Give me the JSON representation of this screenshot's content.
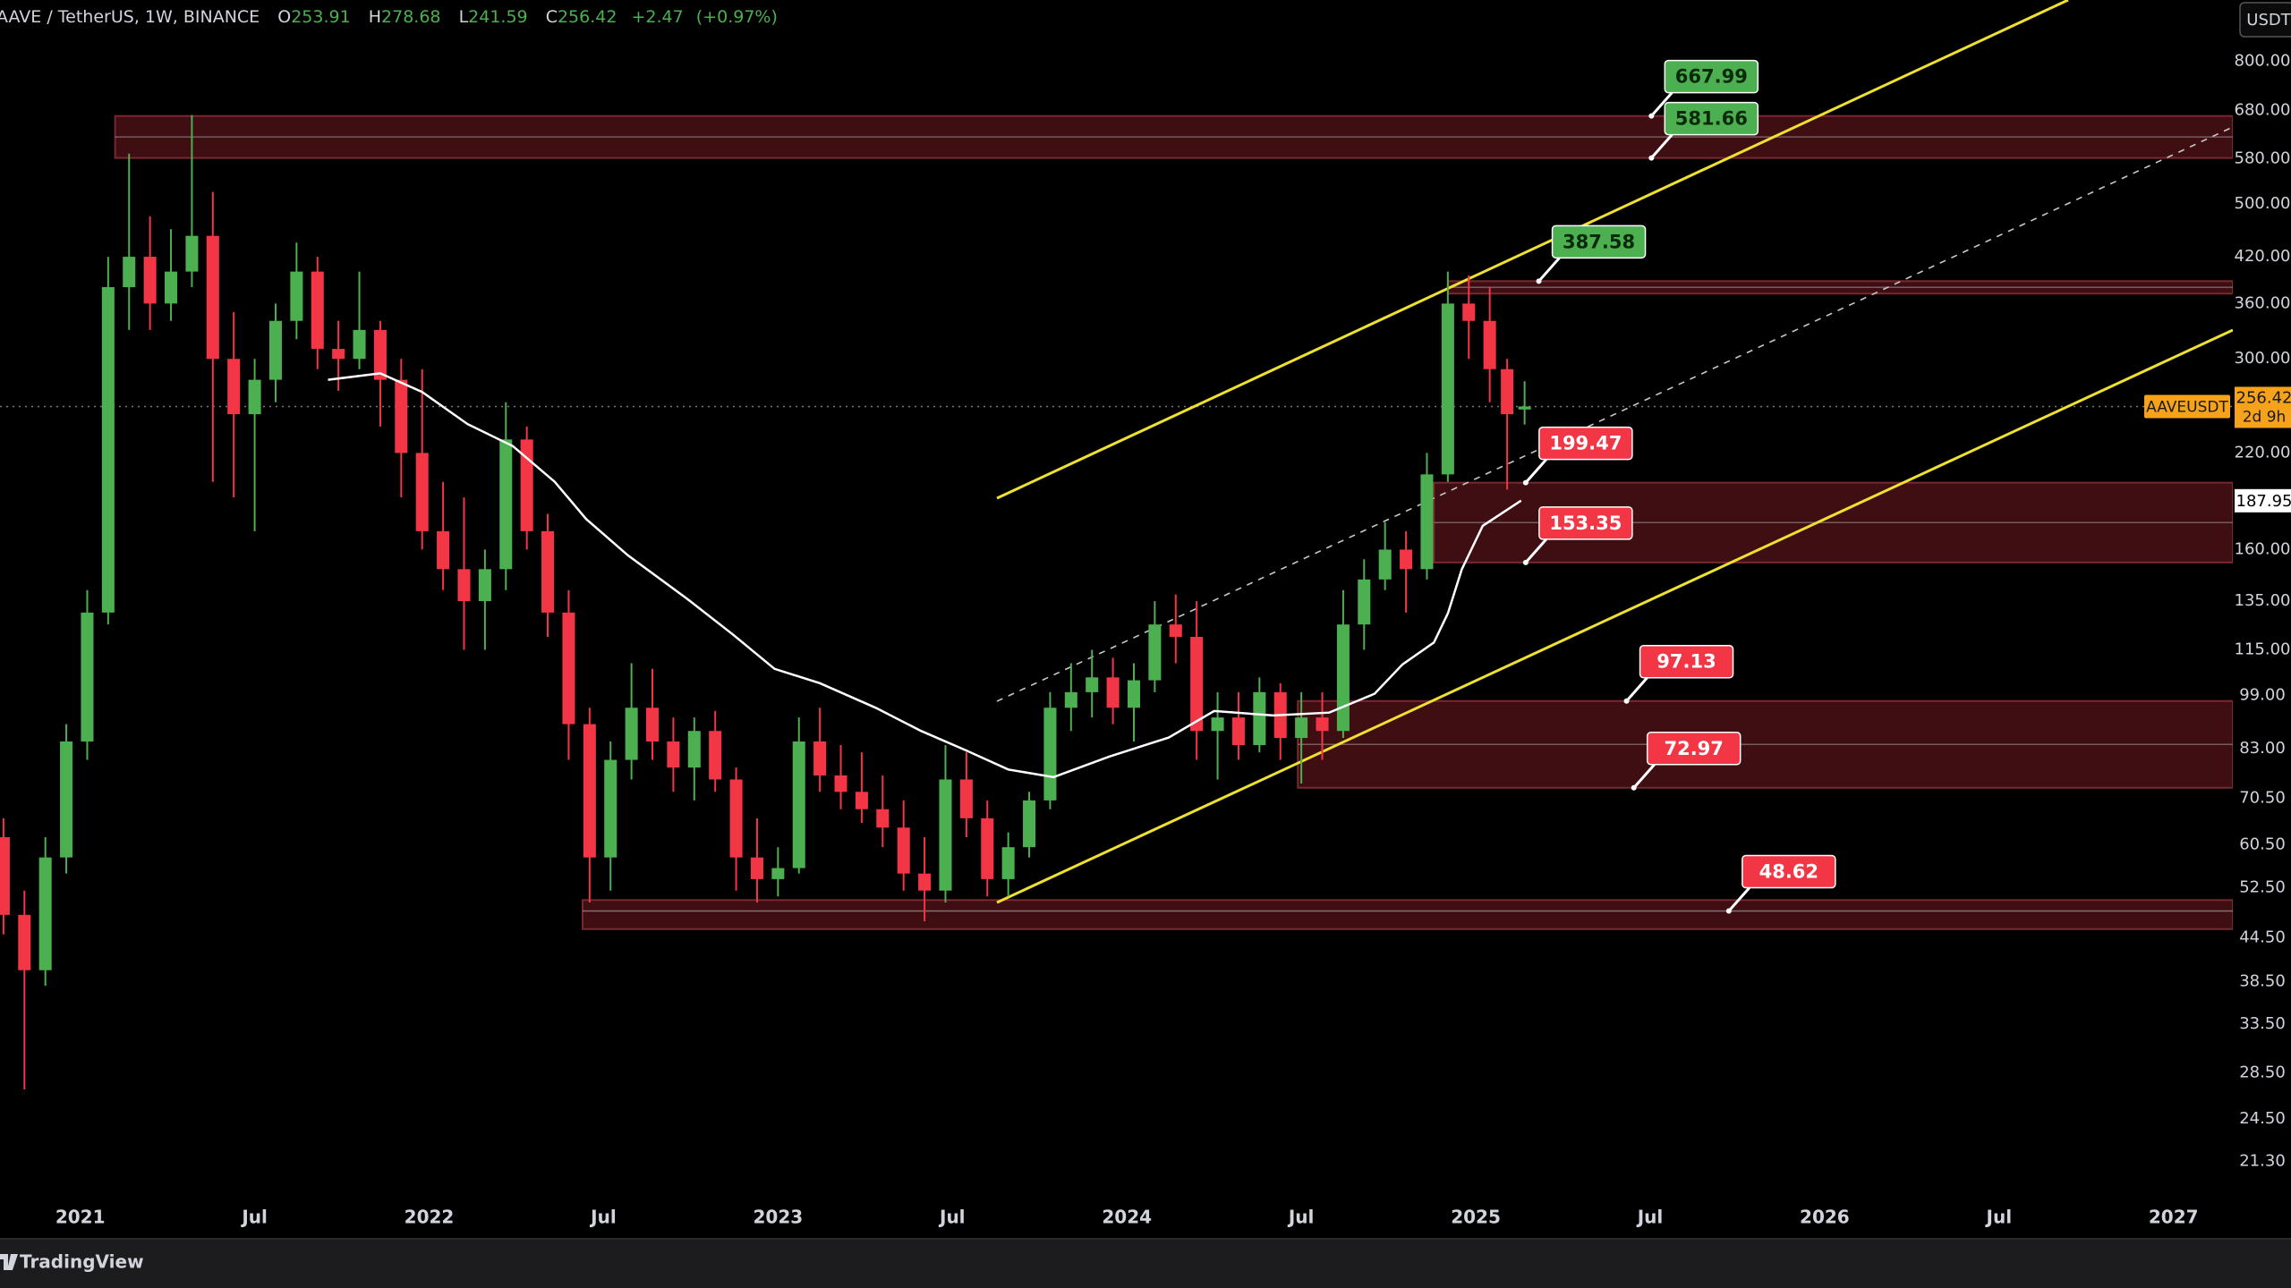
{
  "chart_data": {
    "type": "candlestick",
    "title": "AAVE / TetherUS, 1W, BINANCE",
    "ohlc_header": {
      "open_label": "O",
      "open": 253.91,
      "high_label": "H",
      "high": 278.68,
      "low_label": "L",
      "low": 241.59,
      "close_label": "C",
      "close": 256.42,
      "change": {
        "value": 2.47,
        "label": "+2.47"
      },
      "change_pct": {
        "value": 0.97,
        "label": "(+0.97%)"
      }
    },
    "x": [
      2020.78,
      2020.84,
      2020.9,
      2020.96,
      2021.02,
      2021.08,
      2021.14,
      2021.2,
      2021.26,
      2021.32,
      2021.38,
      2021.44,
      2021.5,
      2021.56,
      2021.62,
      2021.68,
      2021.74,
      2021.8,
      2021.86,
      2021.92,
      2021.98,
      2022.04,
      2022.1,
      2022.16,
      2022.22,
      2022.28,
      2022.34,
      2022.4,
      2022.46,
      2022.52,
      2022.58,
      2022.64,
      2022.7,
      2022.76,
      2022.82,
      2022.88,
      2022.94,
      2023.0,
      2023.06,
      2023.12,
      2023.18,
      2023.24,
      2023.3,
      2023.36,
      2023.42,
      2023.48,
      2023.54,
      2023.6,
      2023.66,
      2023.72,
      2023.78,
      2023.84,
      2023.9,
      2023.96,
      2024.02,
      2024.08,
      2024.14,
      2024.2,
      2024.26,
      2024.32,
      2024.38,
      2024.44,
      2024.5,
      2024.56,
      2024.62,
      2024.68,
      2024.74,
      2024.8,
      2024.86,
      2024.92,
      2024.98,
      2025.04,
      2025.09,
      2025.14
    ],
    "open": [
      62,
      48,
      40,
      58,
      85,
      130,
      380,
      420,
      360,
      400,
      450,
      300,
      250,
      280,
      340,
      400,
      310,
      300,
      330,
      280,
      220,
      170,
      150,
      135,
      150,
      230,
      170,
      130,
      90,
      58,
      80,
      95,
      85,
      78,
      88,
      75,
      58,
      54,
      56,
      85,
      76,
      72,
      68,
      64,
      55,
      52,
      75,
      66,
      54,
      60,
      70,
      95,
      100,
      105,
      95,
      104,
      125,
      120,
      88,
      92,
      84,
      100,
      86,
      92,
      88,
      125,
      145,
      160,
      150,
      205,
      360,
      340,
      290,
      253.91
    ],
    "high": [
      66,
      52,
      62,
      90,
      140,
      420,
      590,
      480,
      460,
      670,
      520,
      350,
      300,
      360,
      440,
      420,
      340,
      400,
      340,
      300,
      290,
      200,
      190,
      160,
      260,
      240,
      180,
      140,
      95,
      85,
      110,
      108,
      92,
      92,
      94,
      78,
      66,
      60,
      92,
      95,
      84,
      82,
      76,
      70,
      62,
      84,
      82,
      70,
      63,
      72,
      100,
      110,
      115,
      112,
      110,
      135,
      138,
      135,
      100,
      100,
      105,
      103,
      100,
      100,
      140,
      155,
      175,
      170,
      220,
      400,
      395,
      380,
      300,
      278.68
    ],
    "low": [
      45,
      27,
      38,
      55,
      80,
      125,
      330,
      330,
      340,
      380,
      200,
      190,
      170,
      260,
      320,
      290,
      270,
      290,
      240,
      190,
      160,
      140,
      115,
      115,
      140,
      160,
      120,
      80,
      50,
      52,
      75,
      80,
      72,
      70,
      72,
      52,
      50,
      51,
      55,
      72,
      68,
      65,
      60,
      52,
      47,
      50,
      62,
      51,
      51,
      58,
      68,
      88,
      92,
      90,
      85,
      100,
      110,
      80,
      75,
      80,
      82,
      80,
      74,
      80,
      86,
      115,
      140,
      130,
      145,
      200,
      300,
      260,
      195,
      241.59
    ],
    "close": [
      48,
      40,
      58,
      85,
      130,
      380,
      420,
      360,
      400,
      450,
      300,
      250,
      280,
      340,
      400,
      310,
      300,
      330,
      280,
      220,
      170,
      150,
      135,
      150,
      230,
      170,
      130,
      90,
      58,
      80,
      95,
      85,
      78,
      88,
      75,
      58,
      54,
      56,
      85,
      76,
      72,
      68,
      64,
      55,
      52,
      75,
      66,
      54,
      60,
      70,
      95,
      100,
      105,
      95,
      104,
      125,
      120,
      88,
      92,
      84,
      100,
      86,
      92,
      88,
      125,
      145,
      160,
      150,
      205,
      360,
      340,
      290,
      250,
      256.42
    ],
    "ma": {
      "x": [
        2021.71,
        2021.86,
        2021.98,
        2022.11,
        2022.24,
        2022.36,
        2022.45,
        2022.57,
        2022.74,
        2022.87,
        2022.99,
        2023.12,
        2023.28,
        2023.41,
        2023.54,
        2023.66,
        2023.79,
        2023.95,
        2024.12,
        2024.25,
        2024.42,
        2024.58,
        2024.71,
        2024.79,
        2024.88,
        2024.92,
        2024.96,
        2025.02,
        2025.13
      ],
      "values": [
        280,
        286,
        269,
        242,
        225,
        200,
        177,
        157,
        136,
        121,
        108,
        103,
        95,
        88,
        82.5,
        77.5,
        75.6,
        80.9,
        86.1,
        94,
        92.6,
        93.5,
        99.5,
        109.6,
        117.8,
        129.7,
        149.9,
        173,
        188
      ]
    },
    "zones": [
      {
        "x0": 2021.1,
        "high": 667.99,
        "low": 581.66
      },
      {
        "x0": 2024.92,
        "high": 387.58,
        "low": 372
      },
      {
        "x0": 2024.88,
        "high": 199.47,
        "low": 153.35
      },
      {
        "x0": 2024.49,
        "high": 97.13,
        "low": 72.97
      },
      {
        "x0": 2022.44,
        "high": 50.4,
        "low": 45.8,
        "mid": 48.62
      }
    ],
    "colors": {
      "up": "#4caf50",
      "down": "#f23645",
      "ma": "#ffffff",
      "zone": "#4a1016",
      "zone_edge": "#7a2830",
      "price": "#f7a21b"
    },
    "log_scale": true,
    "xlim": [
      2020.77,
      2027.17
    ],
    "xticks": [
      2021,
      {
        "value": 2021.5,
        "label": "Jul"
      },
      2022,
      {
        "value": 2022.5,
        "label": "Jul"
      },
      2023,
      {
        "value": 2023.5,
        "label": "Jul"
      },
      2024,
      {
        "value": 2024.5,
        "label": "Jul"
      },
      2025,
      {
        "value": 2025.5,
        "label": "Jul"
      },
      2026,
      {
        "value": 2026.5,
        "label": "Jul"
      },
      2027
    ],
    "ylim": [
      18.9,
      979
    ],
    "yticks": [
      {
        "value": 800,
        "label": "800.00"
      },
      {
        "value": 680,
        "label": "680.00"
      },
      {
        "value": 580,
        "label": "580.00"
      },
      {
        "value": 500,
        "label": "500.00"
      },
      {
        "value": 420,
        "label": "420.00"
      },
      {
        "value": 360,
        "label": "360.00"
      },
      {
        "value": 300,
        "label": "300.00"
      },
      {
        "value": 220,
        "label": "220.00"
      },
      {
        "value": 160,
        "label": "160.00"
      },
      {
        "value": 135,
        "label": "135.00"
      },
      {
        "value": 115,
        "label": "115.00"
      },
      {
        "value": 99,
        "label": "99.00"
      },
      {
        "value": 83,
        "label": "83.00"
      },
      {
        "value": 70.5,
        "label": "70.50"
      },
      {
        "value": 60.5,
        "label": "60.50"
      },
      {
        "value": 52.5,
        "label": "52.50"
      },
      {
        "value": 44.5,
        "label": "44.50"
      },
      {
        "value": 38.5,
        "label": "38.50"
      },
      {
        "value": 33.5,
        "label": "33.50"
      },
      {
        "value": 28.5,
        "label": "28.50"
      },
      {
        "value": 24.5,
        "label": "24.50"
      },
      {
        "value": 21.3,
        "label": "21.30"
      }
    ],
    "currency": "USDT",
    "last_price": {
      "symbol": "AAVEUSDT",
      "value": 256.42,
      "countdown": "2d 9h"
    },
    "marker_price": 187.95
  },
  "footer": {
    "brand": "TradingView"
  }
}
